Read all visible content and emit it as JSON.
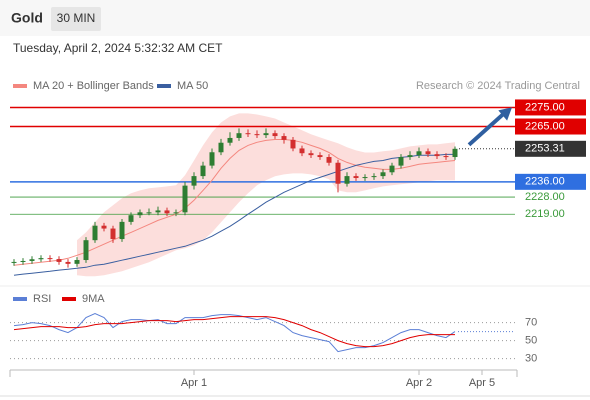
{
  "header": {
    "title": "Gold",
    "timeframe": "30 MIN",
    "datetime": "Tuesday, April 2, 2024 5:32:32 AM CET"
  },
  "chart_data": [
    {
      "type": "candlestick",
      "attribution": "Research © 2024 Trading Central",
      "up_color": "#2e7d32",
      "down_color": "#d32f2f",
      "open": [
        2193.5,
        2194,
        2194.5,
        2195.4,
        2196,
        2195.5,
        2194,
        2193,
        2195,
        2205.4,
        2213,
        2211.5,
        2206,
        2215,
        2218.5,
        2220,
        2220,
        2221,
        2219.5,
        2220,
        2234,
        2239,
        2244.5,
        2251.5,
        2256.5,
        2259,
        2261.5,
        2261,
        2260.5,
        2261.5,
        2260,
        2258,
        2253.5,
        2251,
        2250,
        2249,
        2246,
        2235,
        2239,
        2238,
        2238.5,
        2239,
        2241,
        2244.5,
        2249,
        2250,
        2252,
        2250.5,
        2249.5,
        2249
      ],
      "high": [
        2195.5,
        2196,
        2197,
        2197.5,
        2197.5,
        2197,
        2195.5,
        2196.5,
        2207,
        2215,
        2214.5,
        2213,
        2216.5,
        2220,
        2221.5,
        2222,
        2223,
        2222.5,
        2221.5,
        2236,
        2241,
        2246.5,
        2253.5,
        2258.5,
        2262,
        2264,
        2263.5,
        2263,
        2264,
        2263,
        2261.5,
        2259.5,
        2255,
        2252.5,
        2251.5,
        2250.5,
        2247.5,
        2241,
        2240.5,
        2240,
        2240.5,
        2242.5,
        2246,
        2250.5,
        2252,
        2254,
        2253.5,
        2252,
        2251,
        2254.5
      ],
      "low": [
        2192,
        2192.5,
        2193,
        2194,
        2194,
        2192.5,
        2191,
        2191.5,
        2193.5,
        2204,
        2210,
        2204,
        2204.5,
        2213.5,
        2217,
        2218.5,
        2218.5,
        2218,
        2218,
        2218.5,
        2232,
        2237.5,
        2243,
        2250,
        2255,
        2257.5,
        2259.5,
        2259,
        2259,
        2258.5,
        2256,
        2252,
        2249.5,
        2248.5,
        2247.5,
        2244.5,
        2230.5,
        2233.5,
        2236.5,
        2236.5,
        2237,
        2237.5,
        2239.5,
        2243,
        2247.5,
        2248.5,
        2249,
        2248,
        2247.5,
        2247.5
      ],
      "close": [
        2194,
        2194.5,
        2195.4,
        2196,
        2195.5,
        2194,
        2193,
        2195,
        2205.4,
        2213,
        2211.5,
        2206,
        2215,
        2218.5,
        2220,
        2220,
        2221,
        2219.5,
        2220,
        2234,
        2239,
        2244.5,
        2251.5,
        2256.5,
        2259,
        2261.5,
        2261,
        2260.5,
        2261.5,
        2260,
        2258,
        2253.5,
        2251,
        2250,
        2249,
        2246,
        2235,
        2239,
        2238,
        2238.5,
        2239,
        2241,
        2244.5,
        2249,
        2250,
        2252,
        2250.5,
        2249.5,
        2249,
        2253.31
      ],
      "overlays": [
        {
          "name": "MA 20 + Bollinger Bands",
          "color": "#f4877f",
          "band_color": "#fbd3d0",
          "values": [
            2192.3,
            2192.8,
            2193.3,
            2193.8,
            2194.4,
            2194.9,
            2195.9,
            2197.5,
            2199.1,
            2201.2,
            2203.3,
            2205.4,
            2207.5,
            2209.5,
            2211.6,
            2213.7,
            2215.8,
            2217.4,
            2219.0,
            2222.1,
            2226.3,
            2231.5,
            2236.8,
            2243.1,
            2248.3,
            2252.5,
            2255.1,
            2256.7,
            2257.7,
            2258.2,
            2258.2,
            2257.7,
            2256.7,
            2255.1,
            2253.5,
            2251.4,
            2248.3,
            2246.2,
            2244.6,
            2243.6,
            2243.1,
            2242.5,
            2242.5,
            2243.1,
            2244.1,
            2245.2,
            2245.7,
            2246.2,
            2246.7,
            2247.2
          ],
          "upper": [
            null,
            null,
            null,
            null,
            null,
            null,
            null,
            2205.4,
            2209.5,
            2214.8,
            2220.0,
            2223.7,
            2227.4,
            2230.0,
            2231.5,
            2232.6,
            2233.1,
            2233.6,
            2234.2,
            2239.4,
            2247.2,
            2255.1,
            2261.9,
            2267.1,
            2270.3,
            2271.9,
            2271.9,
            2271.3,
            2270.3,
            2269.2,
            2267.1,
            2265.1,
            2263.0,
            2260.9,
            2259.3,
            2257.7,
            2256.2,
            2254.1,
            2252.5,
            2251.4,
            2251.4,
            2252.0,
            2252.5,
            2253.5,
            2254.6,
            2255.1,
            2255.6,
            2255.6,
            2256.2,
            2256.7
          ],
          "lower": [
            null,
            null,
            null,
            null,
            null,
            null,
            null,
            2187.0,
            2186.5,
            2186.5,
            2187.0,
            2188.1,
            2189.1,
            2190.7,
            2192.3,
            2193.8,
            2195.9,
            2198.0,
            2200.1,
            2201.2,
            2202.7,
            2205.4,
            2209.5,
            2214.8,
            2220.0,
            2225.3,
            2230.0,
            2234.2,
            2236.8,
            2238.9,
            2239.9,
            2240.4,
            2240.4,
            2239.9,
            2238.9,
            2237.3,
            2231.5,
            2230.5,
            2230.5,
            2231.5,
            2232.6,
            2233.6,
            2234.2,
            2234.7,
            2235.2,
            2235.7,
            2236.3,
            2236.8,
            2236.8,
            2236.8
          ]
        },
        {
          "name": "MA 50",
          "color": "#3a5fa0",
          "values": [
            2187.0,
            2187.6,
            2188.1,
            2188.6,
            2189.1,
            2189.7,
            2190.2,
            2190.7,
            2191.2,
            2192.3,
            2192.8,
            2193.8,
            2194.9,
            2195.9,
            2197.0,
            2198.0,
            2199.1,
            2200.1,
            2201.2,
            2202.2,
            2203.8,
            2205.4,
            2207.5,
            2210.1,
            2212.7,
            2215.8,
            2219.0,
            2222.1,
            2225.3,
            2227.9,
            2230.5,
            2232.6,
            2234.7,
            2236.8,
            2238.3,
            2239.9,
            2241.5,
            2243.1,
            2244.6,
            2245.7,
            2246.7,
            2247.2,
            2248.3,
            2248.8,
            2249.3,
            2249.9,
            2249.9,
            2249.9,
            2250.4,
            2250.4
          ]
        }
      ],
      "levels": [
        {
          "value": 2275,
          "label": "2275.00",
          "color": "#e00000",
          "boxed": true
        },
        {
          "value": 2265,
          "label": "2265.00",
          "color": "#e00000",
          "boxed": true
        },
        {
          "value": 2236,
          "label": "2236.00",
          "color": "#2f6fe0",
          "boxed": true
        },
        {
          "value": 2228,
          "label": "2228.00",
          "color": "#3a9a3a",
          "boxed": false
        },
        {
          "value": 2219,
          "label": "2219.00",
          "color": "#3a9a3a",
          "boxed": false
        }
      ],
      "last_price": 2253.31,
      "xlim": [
        -1,
        56
      ],
      "ylim": [
        2184,
        2281
      ]
    },
    {
      "type": "line",
      "series": [
        {
          "name": "RSI",
          "color": "#5b7fd6",
          "values": [
            66.7,
            67.8,
            70,
            68.9,
            66.7,
            62.2,
            58.9,
            64.4,
            75.6,
            80,
            75.6,
            64.4,
            71.1,
            73.3,
            73.3,
            72.2,
            73.3,
            68.9,
            68.9,
            75.6,
            75.6,
            75.6,
            77.8,
            78.9,
            78.9,
            77.8,
            75.6,
            73.3,
            75.6,
            71.1,
            66.7,
            58.9,
            55.6,
            53.3,
            51.1,
            48.9,
            37.8,
            40,
            42.2,
            42.2,
            44.4,
            47.8,
            53.3,
            58.9,
            62.2,
            62.2,
            58.9,
            55.6,
            53.3,
            60
          ]
        },
        {
          "name": "9MA",
          "color": "#e00000",
          "values": [
            62.2,
            63.3,
            64.4,
            65.6,
            65.6,
            65.6,
            64.4,
            64.4,
            65.6,
            67.8,
            68.9,
            68.9,
            68.9,
            70,
            71.1,
            72.2,
            72.2,
            72.2,
            71.1,
            72.2,
            73.3,
            73.3,
            74.4,
            75.6,
            76.7,
            76.7,
            76.7,
            76.7,
            76.7,
            75.6,
            73.3,
            70,
            66.7,
            62.2,
            58.9,
            54.4,
            50,
            46.7,
            44.4,
            43.3,
            43.3,
            44.4,
            46.7,
            50,
            53.3,
            55.6,
            56.7,
            56.7,
            56.7,
            56.7
          ]
        }
      ],
      "xlim": [
        -1,
        56
      ],
      "xticks": [
        {
          "value": 20,
          "label": "Apr 1"
        },
        {
          "value": 45,
          "label": "Apr 2"
        },
        {
          "value": 52,
          "label": "Apr 5"
        }
      ],
      "ylim": [
        18,
        84
      ],
      "yticks": [
        30,
        50,
        70
      ],
      "grid": true
    }
  ]
}
